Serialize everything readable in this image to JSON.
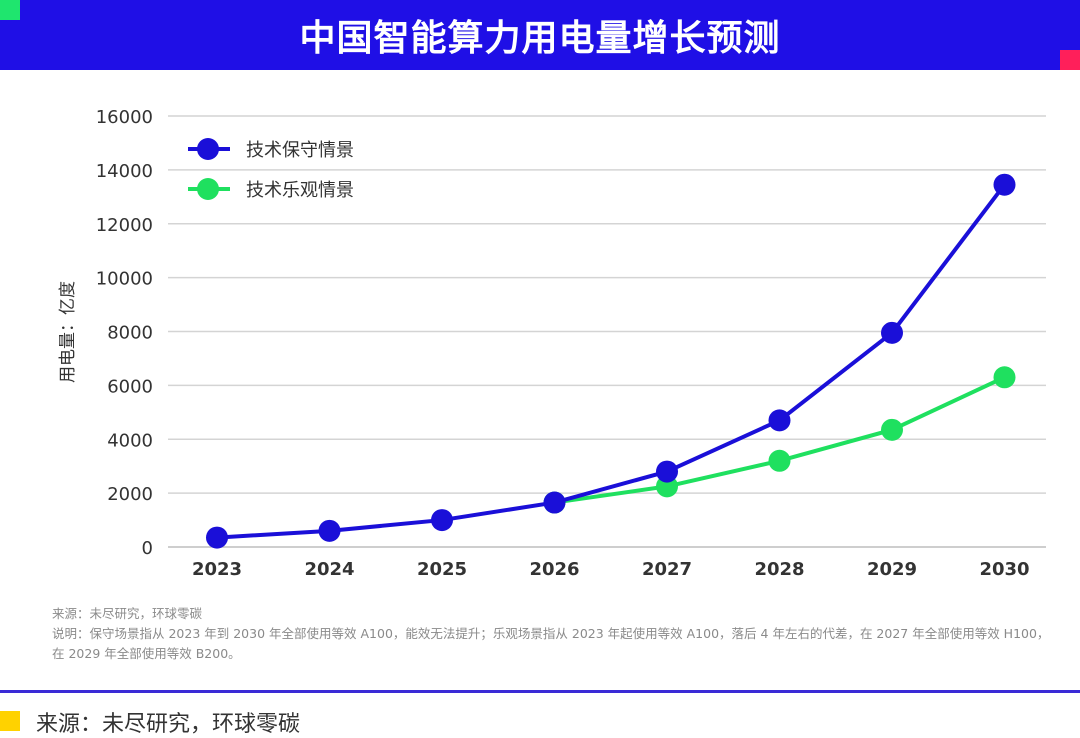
{
  "header": {
    "title": "中国智能算力用电量增长预测"
  },
  "colors": {
    "header_bg": "#1f0fe6",
    "conservative": "#1a0fd8",
    "optimistic": "#1fe05f",
    "footer_accent": "#ffd200"
  },
  "chart_data": {
    "type": "line",
    "title": "",
    "xlabel": "",
    "ylabel": "用电量：亿度",
    "ylim": [
      0,
      16000
    ],
    "yticks": [
      0,
      2000,
      4000,
      6000,
      8000,
      10000,
      12000,
      14000,
      16000
    ],
    "x": [
      "2023",
      "2024",
      "2025",
      "2026",
      "2027",
      "2028",
      "2029",
      "2030"
    ],
    "grid": true,
    "legend_position": "top-left",
    "series": [
      {
        "name": "技术保守情景",
        "color": "#1a0fd8",
        "x": [
          "2023",
          "2024",
          "2025",
          "2026",
          "2027",
          "2028",
          "2029",
          "2030"
        ],
        "values": [
          350,
          600,
          1000,
          1650,
          2800,
          4700,
          7950,
          13450
        ]
      },
      {
        "name": "技术乐观情景",
        "color": "#1fe05f",
        "x": [
          "2026",
          "2027",
          "2028",
          "2029",
          "2030"
        ],
        "values": [
          1650,
          2250,
          3200,
          4350,
          6300
        ]
      }
    ]
  },
  "notes": {
    "source": "来源：未尽研究，环球零碳",
    "explanation": "说明：保守场景指从 2023 年到 2030 年全部使用等效 A100，能效无法提升；乐观场景指从 2023 年起使用等效 A100，落后 4 年左右的代差，在 2027 年全部使用等效 H100，在 2029 年全部使用等效 B200。"
  },
  "footer": {
    "source": "来源：未尽研究，环球零碳"
  }
}
